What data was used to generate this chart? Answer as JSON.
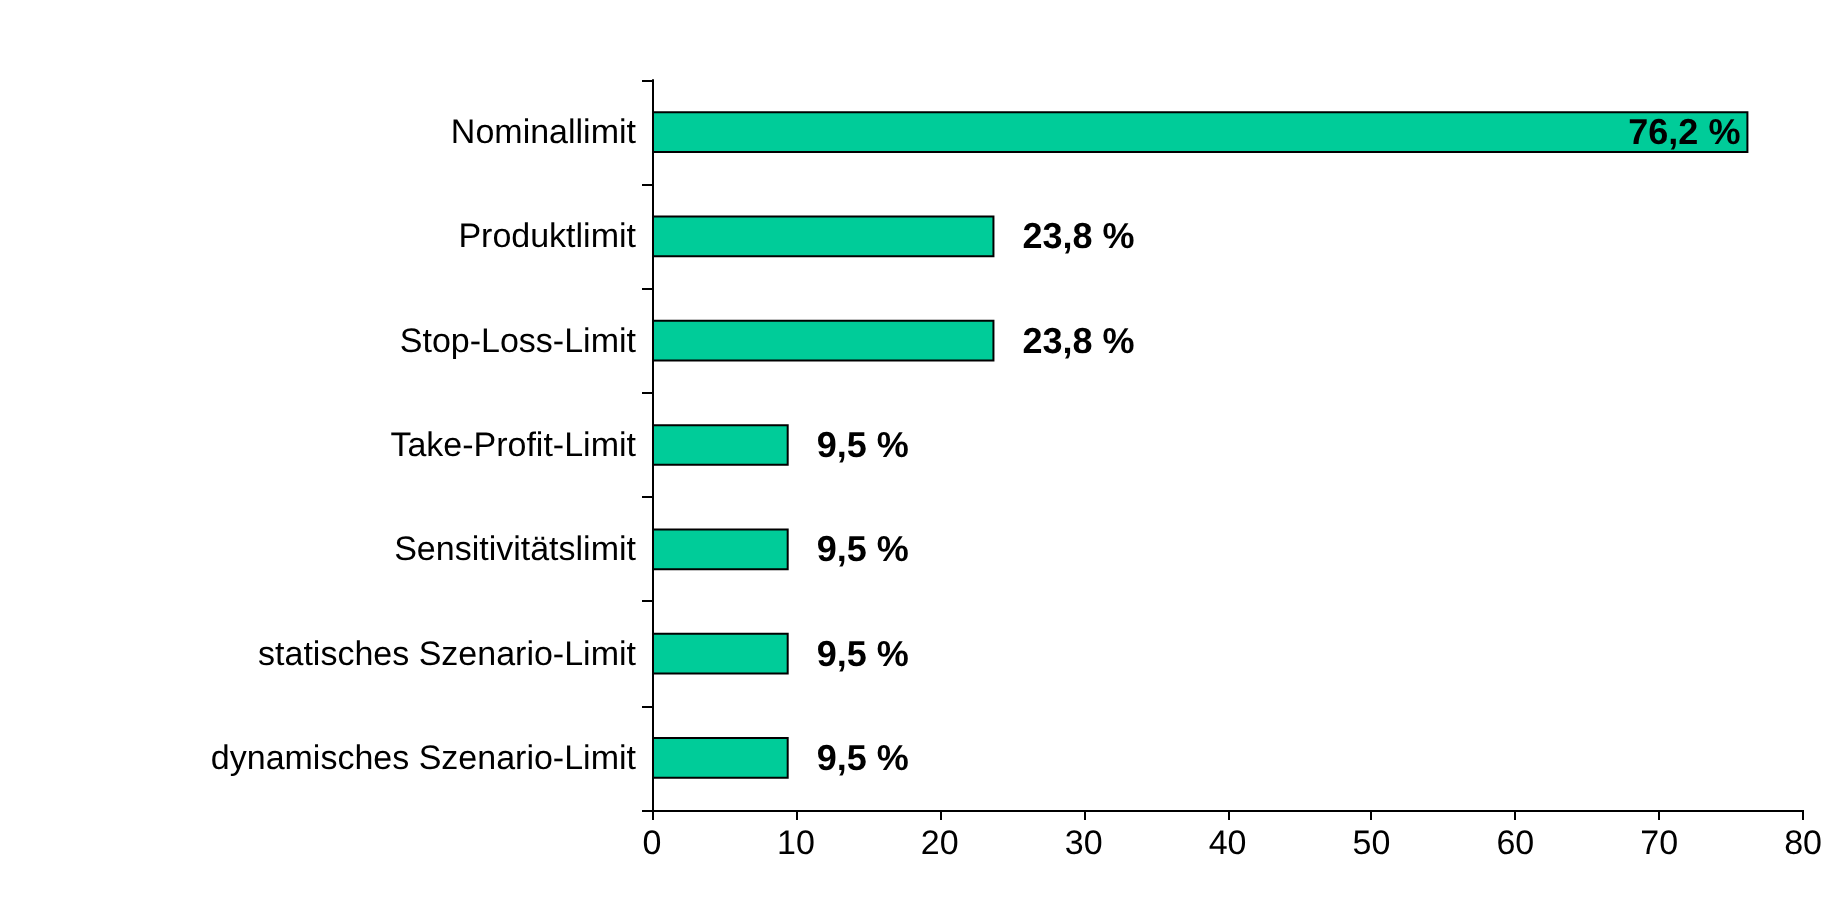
{
  "chart_data": {
    "type": "bar",
    "orientation": "horizontal",
    "categories": [
      "Nominallimit",
      "Produktlimit",
      "Stop-Loss-Limit",
      "Take-Profit-Limit",
      "Sensitivitätslimit",
      "statisches Szenario-Limit",
      "dynamisches Szenario-Limit"
    ],
    "values": [
      76.2,
      23.8,
      23.8,
      9.5,
      9.5,
      9.5,
      9.5
    ],
    "value_labels": [
      "76,2 %",
      "23,8 %",
      "23,8 %",
      "9,5 %",
      "9,5 %",
      "9,5 %",
      "9,5 %"
    ],
    "color": "#00cc99",
    "xlim": [
      0,
      80
    ],
    "xticks": [
      0,
      10,
      20,
      30,
      40,
      50,
      60,
      70,
      80
    ],
    "grid": false
  }
}
